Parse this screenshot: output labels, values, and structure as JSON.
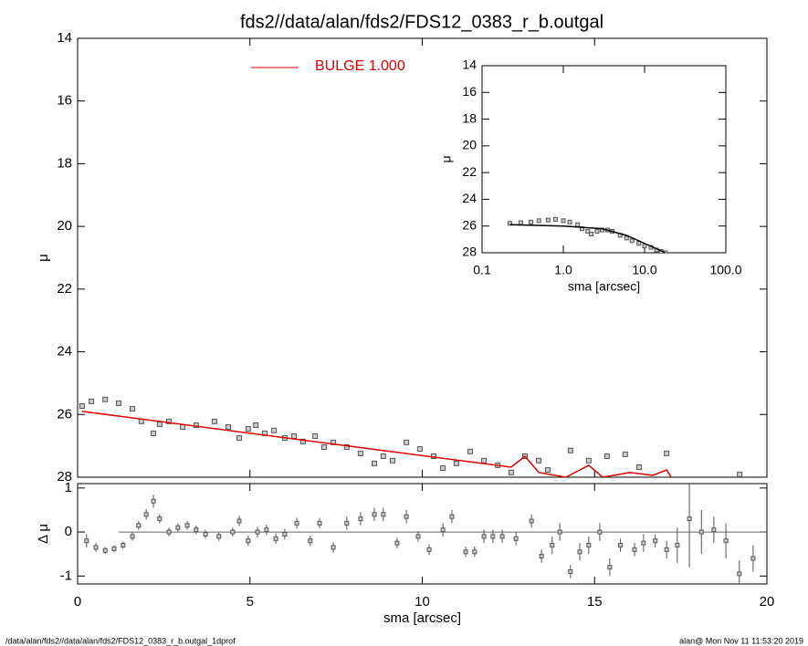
{
  "chart_data": [
    {
      "type": "scatter",
      "title": "fds2//data/alan/fds2/FDS12_0383_r_b.outgal",
      "ylabel": "μ",
      "xlim": [
        0,
        20
      ],
      "xticks": [
        0,
        5,
        10,
        15,
        20
      ],
      "ylim": [
        28,
        14
      ],
      "yticks": [
        14,
        16,
        18,
        20,
        22,
        24,
        26,
        28
      ],
      "legend": "top-left",
      "series": [
        {
          "mode": "markers",
          "color": "#555555",
          "x": [
            0.13,
            0.4,
            0.8,
            1.19,
            1.59,
            1.85,
            2.2,
            2.38,
            2.65,
            3.05,
            3.44,
            3.97,
            4.37,
            4.69,
            4.95,
            5.17,
            5.43,
            5.7,
            6.01,
            6.28,
            6.54,
            6.89,
            7.15,
            7.42,
            7.81,
            8.21,
            8.61,
            8.87,
            9.14,
            9.54,
            9.93,
            10.33,
            10.6,
            10.99,
            11.39,
            11.79,
            12.19,
            12.58,
            12.98,
            13.38,
            13.64,
            14.3,
            14.83,
            15.36,
            15.89,
            16.29,
            17.09,
            19.21
          ],
          "values": [
            25.73,
            25.58,
            25.52,
            25.64,
            25.82,
            26.22,
            26.6,
            26.31,
            26.22,
            26.4,
            26.34,
            26.22,
            26.4,
            26.75,
            26.46,
            26.34,
            26.6,
            26.51,
            26.75,
            26.69,
            26.86,
            26.69,
            27.04,
            26.89,
            27.04,
            27.24,
            27.56,
            27.33,
            27.47,
            26.89,
            27.1,
            27.33,
            27.71,
            27.56,
            27.18,
            27.47,
            27.62,
            27.85,
            27.33,
            27.47,
            27.77,
            27.15,
            27.47,
            27.33,
            27.27,
            27.68,
            27.24,
            27.91
          ]
        },
        {
          "mode": "line",
          "name": "BULGE  1.000",
          "color": "#dd0000",
          "x": [
            0.13,
            12.58,
            12.98,
            13.38,
            14.17,
            14.83,
            15.23,
            16.03,
            16.69,
            17.09,
            17.22
          ],
          "values": [
            25.9,
            27.68,
            27.33,
            27.85,
            28,
            27.62,
            28,
            27.85,
            27.94,
            27.77,
            28
          ]
        }
      ]
    },
    {
      "type": "scatter",
      "xlabel": "sma [arcsec]",
      "ylabel": "μ",
      "xscale": "log",
      "xlim": [
        0.1,
        100
      ],
      "xticks": [
        0.1,
        {
          "value": 1,
          "label": "1.0"
        },
        {
          "value": 10,
          "label": "10.0"
        },
        {
          "value": 100,
          "label": "100.0"
        }
      ],
      "ylim": [
        28,
        14
      ],
      "yticks": [
        14,
        16,
        18,
        20,
        22,
        24,
        26,
        28
      ],
      "series": [
        {
          "mode": "markers",
          "color": "#555555",
          "x": [
            0.22,
            0.3,
            0.4,
            0.5,
            0.65,
            0.8,
            1.0,
            1.2,
            1.5,
            1.7,
            2.0,
            2.2,
            2.6,
            3.0,
            3.5,
            4.0,
            5.0,
            6.0,
            7.0,
            8.5,
            10.0,
            12.0,
            14.0,
            16.0,
            18.0
          ],
          "values": [
            25.8,
            25.75,
            25.7,
            25.6,
            25.55,
            25.5,
            25.6,
            25.7,
            25.9,
            26.2,
            26.4,
            26.6,
            26.4,
            26.3,
            26.3,
            26.4,
            26.7,
            26.9,
            27.1,
            27.3,
            27.5,
            27.6,
            27.8,
            27.9,
            28
          ]
        },
        {
          "mode": "line",
          "color": "#000000",
          "x": [
            0.22,
            1.0,
            3.0,
            6.0,
            10.0,
            14.0,
            18.0
          ],
          "values": [
            25.9,
            26.0,
            26.2,
            26.7,
            27.3,
            27.7,
            28
          ]
        }
      ]
    },
    {
      "type": "errorbar",
      "xlabel": "sma [arcsec]",
      "ylabel": "Δ μ",
      "xlim": [
        0,
        20
      ],
      "xticks": [
        0,
        5,
        10,
        15,
        20
      ],
      "ylim": [
        -1.18,
        1.1
      ],
      "yticks": [
        -1,
        0,
        1
      ],
      "hline": 0,
      "series": [
        {
          "color": "#555555",
          "x": [
            0.26,
            0.53,
            0.8,
            1.06,
            1.32,
            1.59,
            1.77,
            1.99,
            2.2,
            2.38,
            2.65,
            2.91,
            3.18,
            3.44,
            3.71,
            4.1,
            4.5,
            4.69,
            4.95,
            5.22,
            5.48,
            5.75,
            6.01,
            6.36,
            6.75,
            7.02,
            7.42,
            7.81,
            8.21,
            8.61,
            8.87,
            9.27,
            9.54,
            9.88,
            10.2,
            10.6,
            10.86,
            11.26,
            11.52,
            11.79,
            12.05,
            12.32,
            12.72,
            13.17,
            13.46,
            13.77,
            13.99,
            14.3,
            14.57,
            14.83,
            15.15,
            15.44,
            15.75,
            16.16,
            16.42,
            16.76,
            17.09,
            17.4,
            17.75,
            18.1,
            18.46,
            18.81,
            19.2,
            19.6
          ],
          "values": [
            -0.2,
            -0.35,
            -0.42,
            -0.38,
            -0.3,
            -0.1,
            0.15,
            0.4,
            0.7,
            0.3,
            0.0,
            0.1,
            0.15,
            0.05,
            -0.05,
            -0.1,
            0.0,
            0.25,
            -0.2,
            0.0,
            0.05,
            -0.15,
            -0.05,
            0.2,
            -0.2,
            0.2,
            -0.35,
            0.2,
            0.3,
            0.4,
            0.4,
            -0.25,
            0.35,
            -0.1,
            -0.4,
            0.05,
            0.35,
            -0.45,
            -0.45,
            -0.1,
            -0.1,
            -0.1,
            -0.15,
            0.25,
            -0.55,
            -0.3,
            0.0,
            -0.9,
            -0.45,
            -0.3,
            0.0,
            -0.8,
            -0.3,
            -0.4,
            -0.25,
            -0.2,
            -0.4,
            -0.3,
            0.3,
            0.0,
            0.05,
            -0.2,
            -0.95,
            -0.6
          ],
          "errors": [
            0.15,
            0.1,
            0.08,
            0.08,
            0.08,
            0.1,
            0.1,
            0.12,
            0.15,
            0.1,
            0.1,
            0.1,
            0.1,
            0.1,
            0.1,
            0.1,
            0.1,
            0.12,
            0.12,
            0.12,
            0.12,
            0.12,
            0.12,
            0.12,
            0.12,
            0.12,
            0.12,
            0.15,
            0.15,
            0.15,
            0.15,
            0.12,
            0.15,
            0.12,
            0.12,
            0.15,
            0.15,
            0.12,
            0.12,
            0.15,
            0.15,
            0.15,
            0.15,
            0.15,
            0.15,
            0.2,
            0.2,
            0.15,
            0.2,
            0.2,
            0.2,
            0.2,
            0.15,
            0.15,
            0.2,
            0.15,
            0.2,
            0.4,
            1.1,
            0.5,
            0.3,
            0.4,
            0.3,
            0.3
          ]
        }
      ]
    }
  ],
  "footer": {
    "left": "/data/alan/fds2//data/alan/fds2/FDS12_0383_r_b.outgal_1dprof",
    "right": "alan@  Mon Nov 11 11:53:20 2019"
  }
}
